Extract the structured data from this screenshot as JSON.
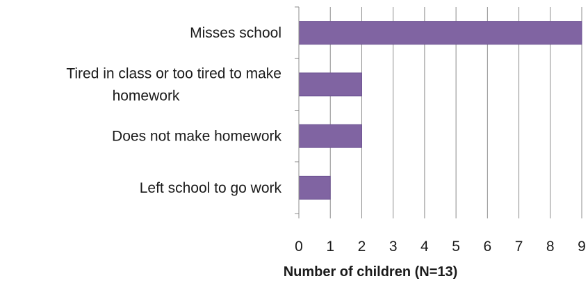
{
  "chart_data": {
    "type": "bar",
    "orientation": "horizontal",
    "categories": [
      "Misses school",
      "Tired in class or too tired to make homework",
      "Does not make homework",
      "Left school to go work"
    ],
    "category_label_lines": [
      [
        "Misses school"
      ],
      [
        "Tired in class or too tired to make",
        "homework"
      ],
      [
        "Does not make homework"
      ],
      [
        "Left school to go work"
      ]
    ],
    "values": [
      9,
      2,
      2,
      1
    ],
    "xlabel": "Number of children (N=13)",
    "ylabel": "",
    "title": "",
    "xlim": [
      0,
      9
    ],
    "x_ticks": [
      "0",
      "1",
      "2",
      "3",
      "4",
      "5",
      "6",
      "7",
      "8",
      "9"
    ],
    "vertical_gridlines": true,
    "legend": "none",
    "colors": {
      "bar": "#8064a2",
      "bar_edge": "#6b5191",
      "grid": "#8c8c8c",
      "axis": "#8c8c8c",
      "text": "#1a1a1a"
    }
  }
}
